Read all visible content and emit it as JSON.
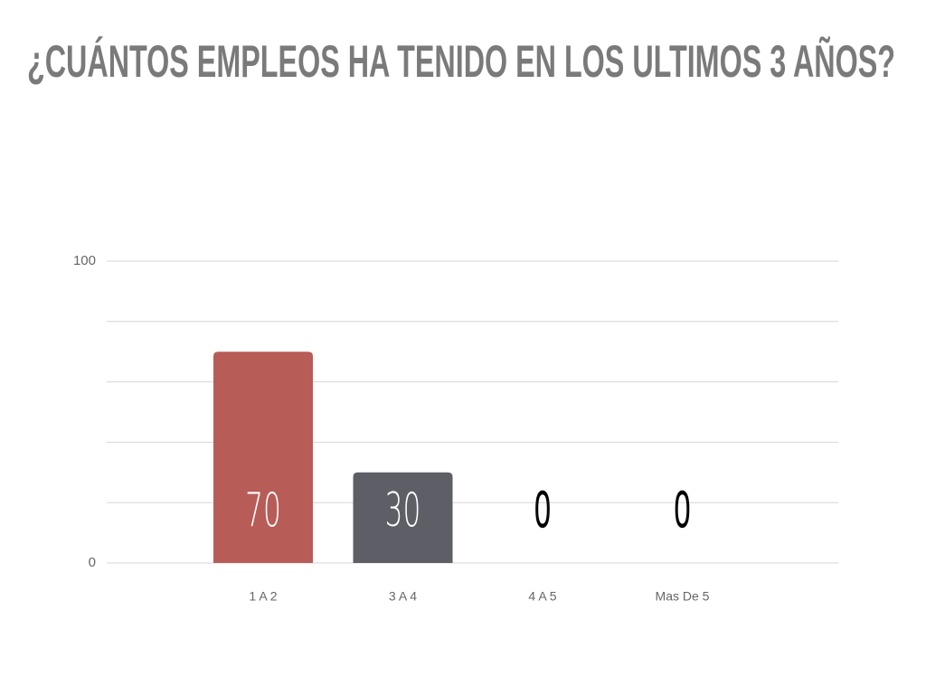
{
  "chart_data": {
    "type": "bar",
    "title": "¿CUÁNTOS EMPLEOS HA TENIDO EN LOS ULTIMOS 3 AÑOS?",
    "categories": [
      "1 A 2",
      "3 A 4",
      "4 A 5",
      "Mas De 5"
    ],
    "values": [
      70,
      30,
      0,
      0
    ],
    "colors": [
      "#b85c57",
      "#5e5f66",
      "#5e5f66",
      "#5e5f66"
    ],
    "ylim": [
      0,
      100
    ],
    "yticks": [
      0,
      100
    ],
    "ygrid": [
      0,
      20,
      40,
      60,
      80,
      100
    ],
    "grid": true
  }
}
